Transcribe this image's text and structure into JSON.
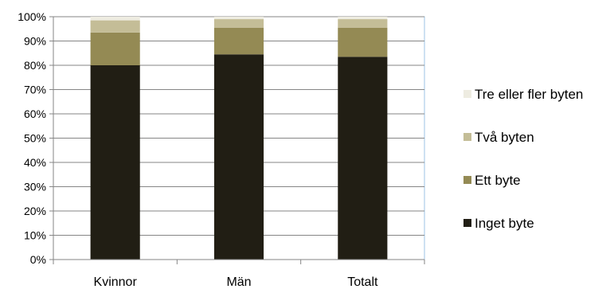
{
  "chart_data": {
    "type": "bar",
    "stacked": true,
    "percent_stacked": true,
    "categories": [
      "Kvinnor",
      "Män",
      "Totalt"
    ],
    "series": [
      {
        "name": "Inget byte",
        "values": [
          80,
          84.5,
          83.5
        ],
        "color": "#211e14"
      },
      {
        "name": "Ett byte",
        "values": [
          13.5,
          11,
          12
        ],
        "color": "#948a54"
      },
      {
        "name": "Två byten",
        "values": [
          5,
          3.5,
          3.5
        ],
        "color": "#c4bd97"
      },
      {
        "name": "Tre eller fler byten",
        "values": [
          1.5,
          1,
          1
        ],
        "color": "#eeece1"
      }
    ],
    "y_tick_labels": [
      "0%",
      "10%",
      "20%",
      "30%",
      "40%",
      "50%",
      "60%",
      "70%",
      "80%",
      "90%",
      "100%"
    ],
    "ylim": [
      0,
      100
    ],
    "grid": true,
    "legend_position": "right",
    "legend_order": [
      "Tre eller fler byten",
      "Två byten",
      "Ett byte",
      "Inget byte"
    ],
    "title": "",
    "xlabel": "",
    "ylabel": ""
  }
}
